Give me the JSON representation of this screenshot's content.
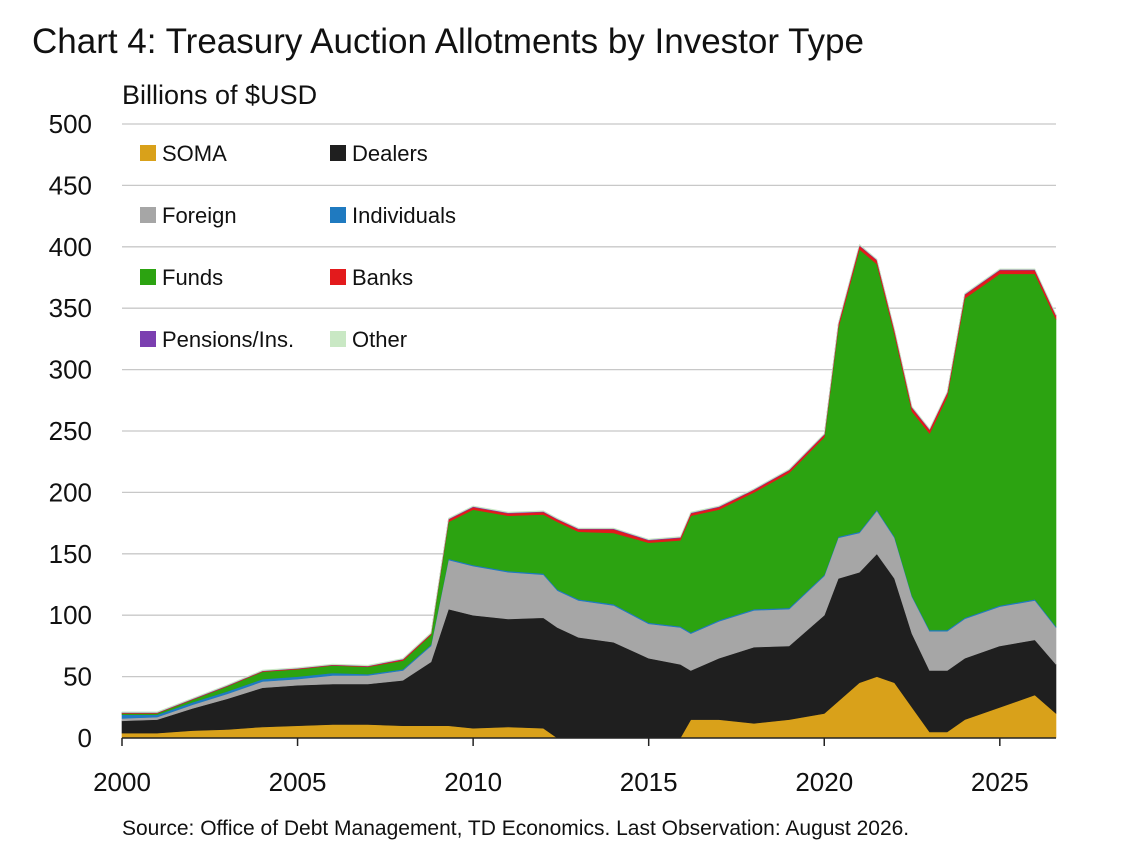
{
  "chart_data": {
    "type": "area",
    "stacked": true,
    "title": "Chart 4: Treasury Auction Allotments by Investor Type",
    "unit_label": "Billions of $USD",
    "source": "Source: Office of Debt Management, TD Economics.  Last Observation: August 2026.",
    "xlim": [
      2000,
      2026.6
    ],
    "ylim": [
      0,
      500
    ],
    "x_ticks": [
      2000,
      2005,
      2010,
      2015,
      2020,
      2025
    ],
    "y_ticks": [
      0,
      50,
      100,
      150,
      200,
      250,
      300,
      350,
      400,
      450,
      500
    ],
    "grid": "horizontal",
    "legend_position": "top-left",
    "x": [
      2000,
      2001,
      2002,
      2003,
      2004,
      2005,
      2006,
      2007,
      2008,
      2008.8,
      2009.3,
      2010,
      2011,
      2012,
      2012.4,
      2013,
      2014,
      2015,
      2015.9,
      2016.2,
      2017,
      2018,
      2019,
      2020,
      2020.4,
      2021,
      2021.5,
      2022,
      2022.5,
      2023,
      2023.5,
      2024,
      2025,
      2026,
      2026.6
    ],
    "series": [
      {
        "name": "SOMA",
        "color": "#d9a11a",
        "values": [
          4,
          4,
          6,
          7,
          9,
          10,
          11,
          11,
          10,
          10,
          10,
          8,
          9,
          8,
          0,
          0,
          0,
          0,
          0,
          15,
          15,
          12,
          15,
          20,
          30,
          45,
          50,
          45,
          25,
          5,
          5,
          15,
          25,
          35,
          20
        ]
      },
      {
        "name": "Dealers",
        "color": "#1f1f1f",
        "values": [
          10,
          11,
          18,
          25,
          32,
          33,
          33,
          33,
          37,
          52,
          95,
          92,
          88,
          90,
          90,
          82,
          78,
          65,
          60,
          40,
          50,
          62,
          60,
          80,
          100,
          90,
          100,
          85,
          60,
          50,
          50,
          50,
          50,
          45,
          40
        ]
      },
      {
        "name": "Foreign",
        "color": "#a6a6a6",
        "values": [
          2,
          2,
          3,
          4,
          5,
          5,
          7,
          7,
          8,
          13,
          40,
          40,
          38,
          35,
          30,
          30,
          30,
          28,
          30,
          30,
          30,
          30,
          30,
          32,
          33,
          32,
          35,
          33,
          30,
          32,
          32,
          32,
          32,
          32,
          30
        ]
      },
      {
        "name": "Individuals",
        "color": "#1f7ac0",
        "values": [
          3,
          2,
          2,
          2,
          2,
          2,
          2,
          1,
          1,
          1,
          1,
          1,
          1,
          1,
          1,
          1,
          1,
          1,
          1,
          1,
          1,
          1,
          1,
          1,
          1,
          1,
          1,
          1,
          1,
          1,
          1,
          1,
          1,
          1,
          1
        ]
      },
      {
        "name": "Funds",
        "color": "#2ca311",
        "values": [
          1,
          1,
          2,
          4,
          6,
          6,
          6,
          6,
          7,
          8,
          30,
          45,
          45,
          48,
          55,
          55,
          58,
          65,
          70,
          95,
          90,
          95,
          110,
          112,
          170,
          230,
          200,
          165,
          150,
          160,
          190,
          260,
          270,
          265,
          250
        ]
      },
      {
        "name": "Banks",
        "color": "#e31a1c",
        "values": [
          0.5,
          0.5,
          0.5,
          0.5,
          0.5,
          0.5,
          0.5,
          0.5,
          1,
          1,
          2,
          2,
          2,
          2,
          2,
          2,
          3,
          2,
          2,
          2,
          2,
          2,
          2,
          2,
          3,
          3,
          3,
          3,
          3,
          3,
          3,
          3,
          3,
          3,
          3
        ]
      },
      {
        "name": "Pensions/Ins.",
        "color": "#7b3fb0",
        "values": [
          0.3,
          0.3,
          0.3,
          0.3,
          0.3,
          0.3,
          0.3,
          0.3,
          0.3,
          0.3,
          0.5,
          0.5,
          0.5,
          0.5,
          0.5,
          0.5,
          0.5,
          0.5,
          0.5,
          0.5,
          0.5,
          0.5,
          0.5,
          0.5,
          0.5,
          0.5,
          0.5,
          0.5,
          0.5,
          0.5,
          0.5,
          0.5,
          0.5,
          0.5,
          0.5
        ]
      },
      {
        "name": "Other",
        "color": "#c9e8c4",
        "values": [
          0.5,
          0.5,
          0.5,
          0.5,
          0.5,
          0.5,
          0.5,
          0.5,
          0.5,
          0.5,
          0.5,
          0.5,
          0.5,
          0.5,
          0.5,
          0.5,
          0.5,
          0.5,
          0.5,
          0.5,
          0.5,
          0.5,
          0.5,
          0.5,
          0.5,
          0.5,
          0.5,
          0.5,
          0.5,
          0.5,
          0.5,
          0.5,
          0.5,
          0.5,
          0.5
        ]
      }
    ]
  }
}
